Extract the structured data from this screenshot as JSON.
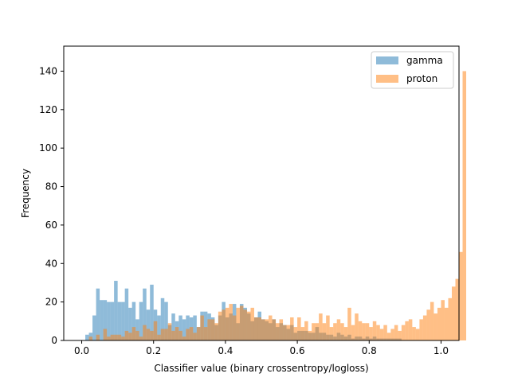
{
  "chart_data": {
    "type": "bar",
    "subtype": "overlaid-histogram",
    "title": "",
    "xlabel": "Classifier value (binary crossentropy/logloss)",
    "ylabel": "Frequency",
    "xlim": [
      -0.05,
      1.05
    ],
    "ylim": [
      0,
      153
    ],
    "xticks": [
      0.0,
      0.2,
      0.4,
      0.6,
      0.8,
      1.0
    ],
    "xtick_labels": [
      "0.0",
      "0.2",
      "0.4",
      "0.6",
      "0.8",
      "1.0"
    ],
    "yticks": [
      0,
      20,
      40,
      60,
      80,
      100,
      120,
      140
    ],
    "ytick_labels": [
      "0",
      "20",
      "40",
      "60",
      "80",
      "100",
      "120",
      "140"
    ],
    "grid": false,
    "legend_position": "top-right",
    "bin_width": 0.01,
    "series": [
      {
        "name": "gamma",
        "color": "#1f77b4",
        "alpha": 0.5,
        "bin_start": 0.01,
        "values": [
          3,
          4,
          13,
          27,
          21,
          21,
          20,
          20,
          31,
          20,
          20,
          27,
          17,
          20,
          11,
          20,
          27,
          16,
          29,
          16,
          13,
          22,
          20,
          8,
          14,
          10,
          13,
          11,
          13,
          12,
          13,
          7,
          15,
          15,
          14,
          12,
          8,
          13,
          20,
          12,
          14,
          19,
          9,
          19,
          17,
          14,
          10,
          12,
          15,
          11,
          10,
          9,
          11,
          7,
          9,
          8,
          6,
          8,
          4,
          5,
          5,
          5,
          4,
          4,
          7,
          4,
          4,
          3,
          3,
          2,
          4,
          3,
          2,
          3,
          1,
          2,
          2,
          1,
          2,
          1,
          2,
          1,
          1,
          1,
          1,
          1,
          1,
          1,
          0,
          0,
          0
        ]
      },
      {
        "name": "proton",
        "color": "#ff7f0e",
        "alpha": 0.5,
        "bin_start": 0.02,
        "values": [
          2,
          0,
          3,
          0,
          6,
          2,
          3,
          3,
          3,
          2,
          5,
          4,
          7,
          5,
          2,
          8,
          6,
          5,
          10,
          3,
          6,
          6,
          9,
          5,
          7,
          5,
          2,
          6,
          7,
          4,
          7,
          13,
          7,
          11,
          11,
          9,
          15,
          16,
          17,
          19,
          13,
          17,
          18,
          16,
          15,
          17,
          12,
          12,
          11,
          11,
          13,
          11,
          9,
          11,
          8,
          8,
          12,
          7,
          12,
          7,
          10,
          5,
          9,
          9,
          14,
          9,
          13,
          7,
          9,
          11,
          9,
          7,
          17,
          8,
          14,
          10,
          9,
          9,
          7,
          10,
          8,
          6,
          8,
          4,
          6,
          8,
          5,
          8,
          10,
          11,
          7,
          6,
          11,
          13,
          16,
          20,
          14,
          17,
          21,
          17,
          22,
          28,
          32,
          46,
          140
        ]
      }
    ]
  }
}
